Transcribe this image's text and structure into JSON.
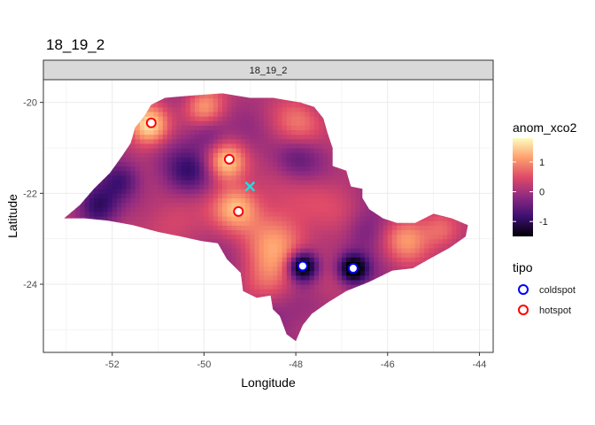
{
  "chart_data": {
    "type": "heatmap",
    "title": "18_19_2",
    "facet_label": "18_19_2",
    "xlabel": "Longitude",
    "ylabel": "Latitude",
    "xlim": [
      -53.5,
      -43.7
    ],
    "ylim": [
      -25.5,
      -19.5
    ],
    "x_ticks": [
      -52,
      -50,
      -48,
      -46,
      -44
    ],
    "y_ticks": [
      -20,
      -22,
      -24
    ],
    "x_tick_labels": [
      "-52",
      "-50",
      "-48",
      "-46",
      "-44"
    ],
    "y_tick_labels": [
      "-20",
      "-22",
      "-24"
    ],
    "grid": true,
    "fill_scale": {
      "name": "anom_xco2",
      "range": [
        -1.5,
        1.8
      ],
      "breaks": [
        1,
        0,
        -1
      ],
      "break_labels": [
        "1",
        "0",
        "-1"
      ],
      "colors": [
        "#000004",
        "#3b0f70",
        "#8c2981",
        "#de4968",
        "#fe9f6d",
        "#fcfdbf"
      ]
    },
    "point_legend": {
      "title": "tipo",
      "entries": [
        {
          "label": "coldspot",
          "color": "#0000ff"
        },
        {
          "label": "hotspot",
          "color": "#ff0000"
        }
      ]
    },
    "hotspots": [
      {
        "x": -51.15,
        "y": -20.45
      },
      {
        "x": -49.45,
        "y": -21.25
      },
      {
        "x": -49.25,
        "y": -22.4
      }
    ],
    "coldspots": [
      {
        "x": -47.85,
        "y": -23.6
      },
      {
        "x": -46.75,
        "y": -23.65
      }
    ],
    "centroid_marker": {
      "x": -49.0,
      "y": -21.85,
      "color": "#22dddd"
    }
  }
}
